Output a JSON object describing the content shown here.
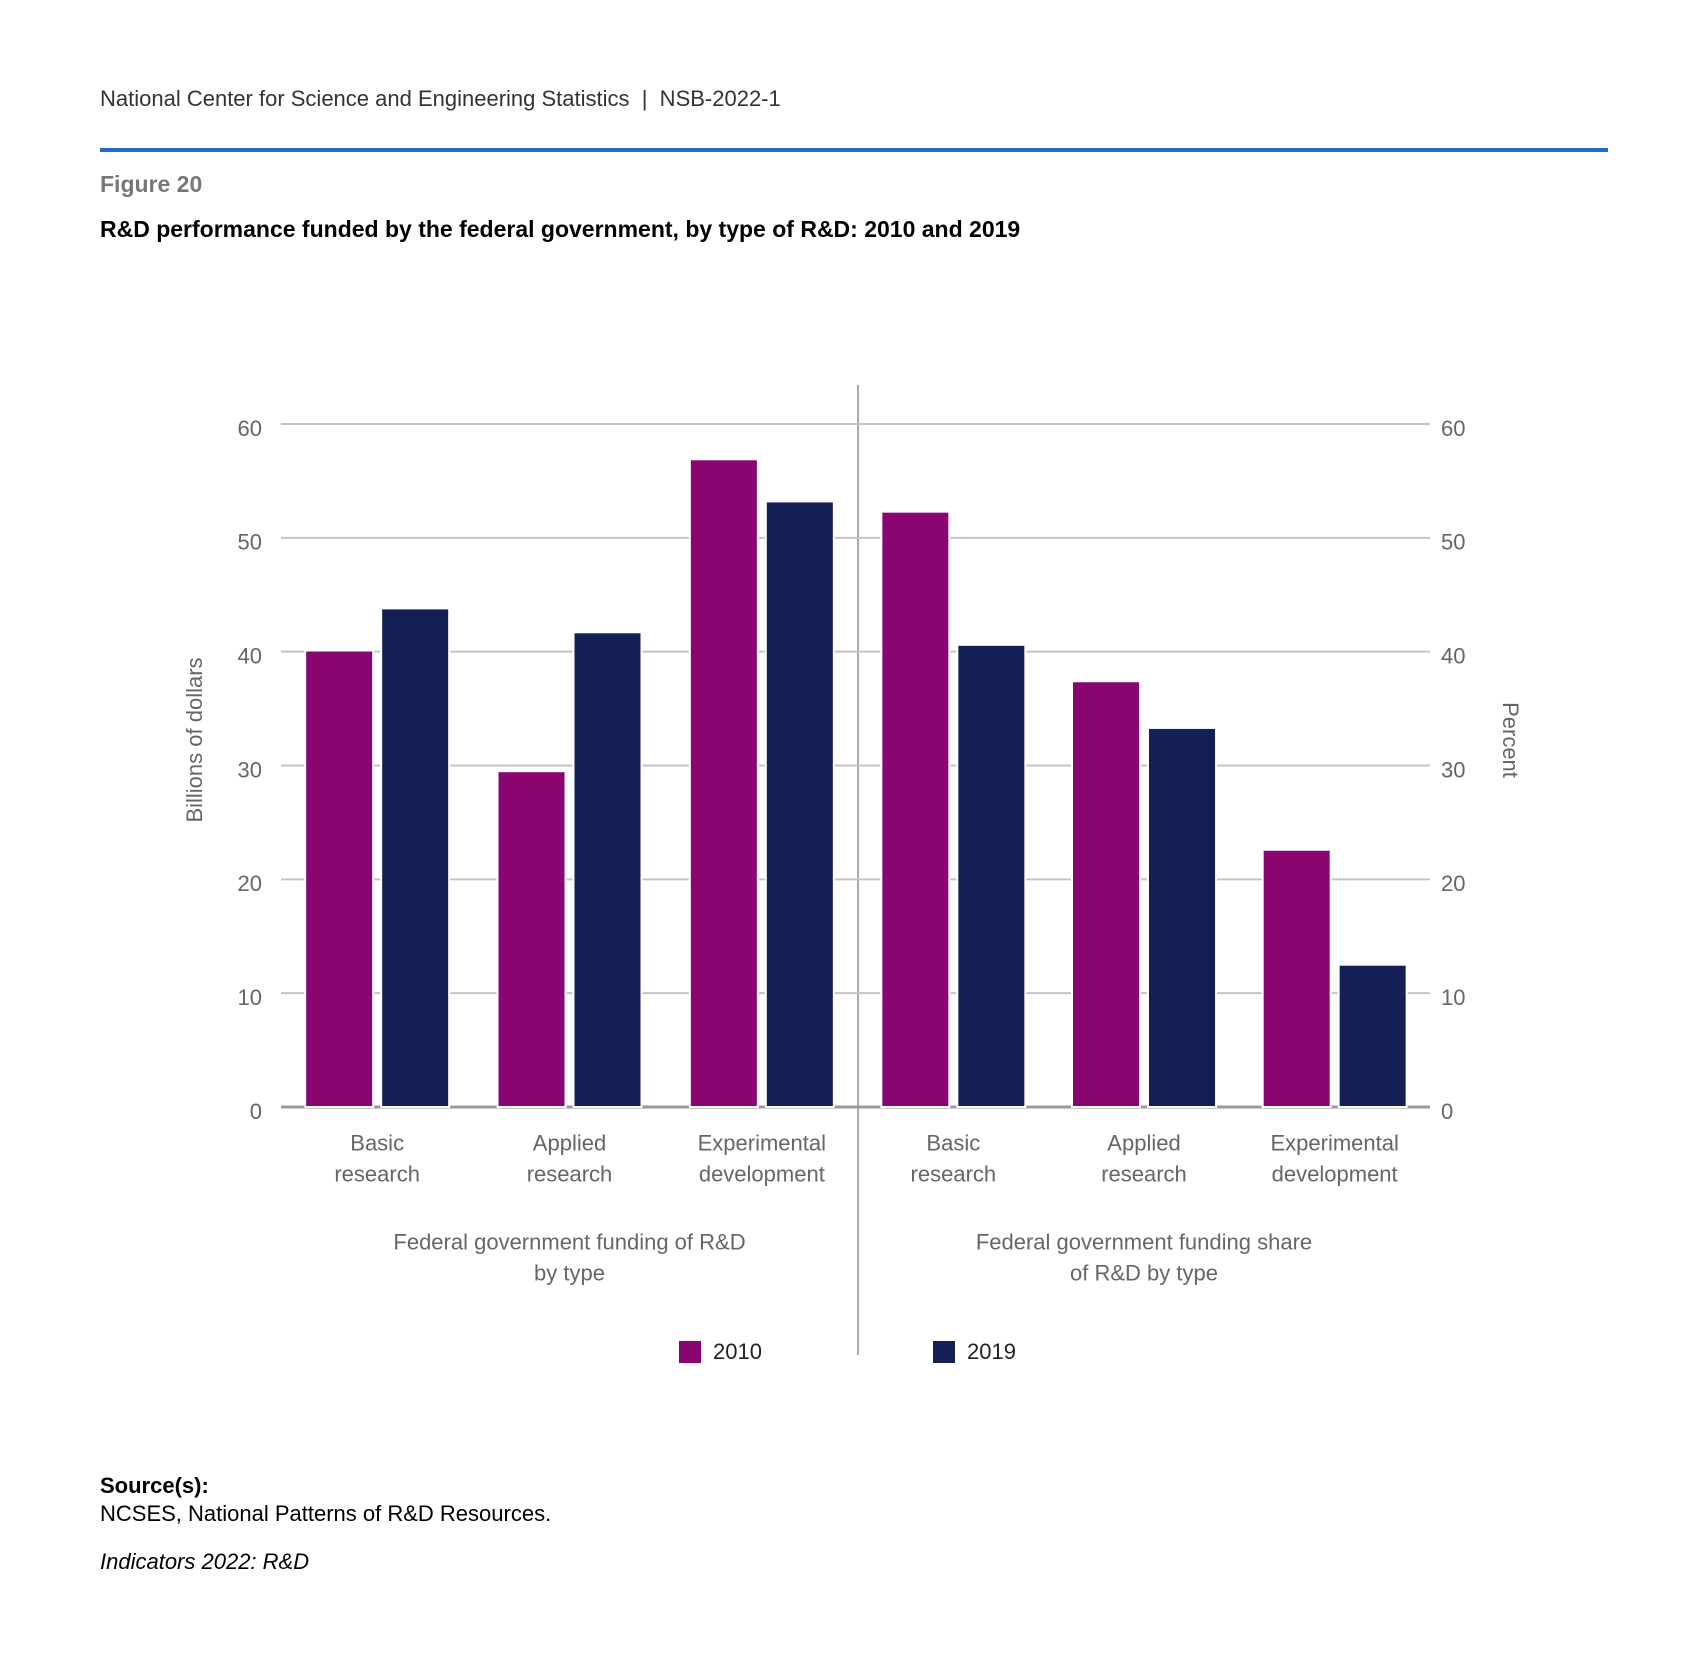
{
  "header": "National Center for Science and Engineering Statistics  |  NSB-2022-1",
  "figure": "Figure 20",
  "source_label": "Source(s):",
  "source": "NCSES, National Patterns of R&D Resources.",
  "footer": "Indicators 2022: R&D",
  "chart_data": {
    "type": "bar",
    "title": "R&D performance funded by the federal government, by type of R&D: 2010 and 2019",
    "grid": true,
    "series": [
      {
        "name": "2010",
        "color": "#8a0570"
      },
      {
        "name": "2019",
        "color": "#131f55"
      }
    ],
    "panels": [
      {
        "xlabel": "Federal government funding of R&D\nby type",
        "ylabel": "Billions of dollars",
        "axis": "y",
        "categories": [
          "Basic\nresearch",
          "Applied\nresearch",
          "Experimental\ndevelopment"
        ],
        "values": [
          [
            40.1,
            29.5,
            56.9
          ],
          [
            43.8,
            41.7,
            53.2
          ]
        ],
        "ylim": [
          0,
          60
        ],
        "yticks": [
          0,
          10,
          20,
          30,
          40,
          50,
          60
        ]
      },
      {
        "xlabel": "Federal government funding share\nof R&D by type",
        "ylabel": "Percent",
        "axis": "y2",
        "categories": [
          "Basic\nresearch",
          "Applied\nresearch",
          "Experimental\ndevelopment"
        ],
        "values": [
          [
            52.3,
            37.4,
            22.6
          ],
          [
            40.6,
            33.3,
            12.5
          ]
        ],
        "ylim": [
          0,
          60
        ],
        "yticks": [
          0,
          10,
          20,
          30,
          40,
          50,
          60
        ]
      }
    ]
  }
}
